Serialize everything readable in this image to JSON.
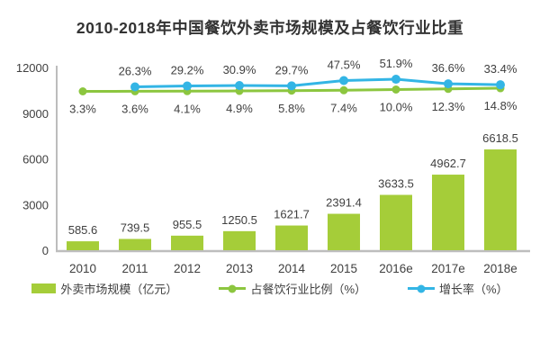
{
  "title": "2010-2018年中国餐饮外卖市场规模及占餐饮行业比重",
  "colors": {
    "bar": "#a5cd39",
    "ratio_line": "#8cc63f",
    "growth_line": "#33b5e5",
    "axis": "#bdbdbd",
    "label_text": "#404040",
    "title_text": "#333333"
  },
  "legend": [
    {
      "label": "外卖市场规模（亿元）",
      "type": "bar-swatch",
      "color": "#a5cd39"
    },
    {
      "label": "占餐饮行业比例（%）",
      "type": "line-swatch",
      "color": "#8cc63f"
    },
    {
      "label": "增长率（%）",
      "type": "line-swatch",
      "color": "#33b5e5"
    }
  ],
  "chart_data": {
    "type": "bar",
    "title": "2010-2018年中国餐饮外卖市场规模及占餐饮行业比重",
    "categories": [
      "2010",
      "2011",
      "2012",
      "2013",
      "2014",
      "2015",
      "2016e",
      "2017e",
      "2018e"
    ],
    "series": [
      {
        "name": "外卖市场规模（亿元）",
        "type": "bar",
        "values": [
          585.6,
          739.5,
          955.5,
          1250.5,
          1621.7,
          2391.4,
          3633.5,
          4962.7,
          6618.5
        ]
      },
      {
        "name": "占餐饮行业比例（%）",
        "type": "line",
        "values": [
          3.3,
          3.6,
          4.1,
          4.9,
          5.8,
          7.4,
          10.0,
          12.3,
          14.8
        ]
      },
      {
        "name": "增长率（%）",
        "type": "line",
        "values": [
          null,
          26.3,
          29.2,
          30.9,
          29.7,
          47.5,
          51.9,
          36.6,
          33.4
        ]
      }
    ],
    "xlabel": "",
    "ylabel": "",
    "yticks": [
      0,
      3000,
      6000,
      9000,
      12000
    ],
    "ylim": [
      0,
      12000
    ],
    "grid": false,
    "legend_position": "bottom"
  }
}
